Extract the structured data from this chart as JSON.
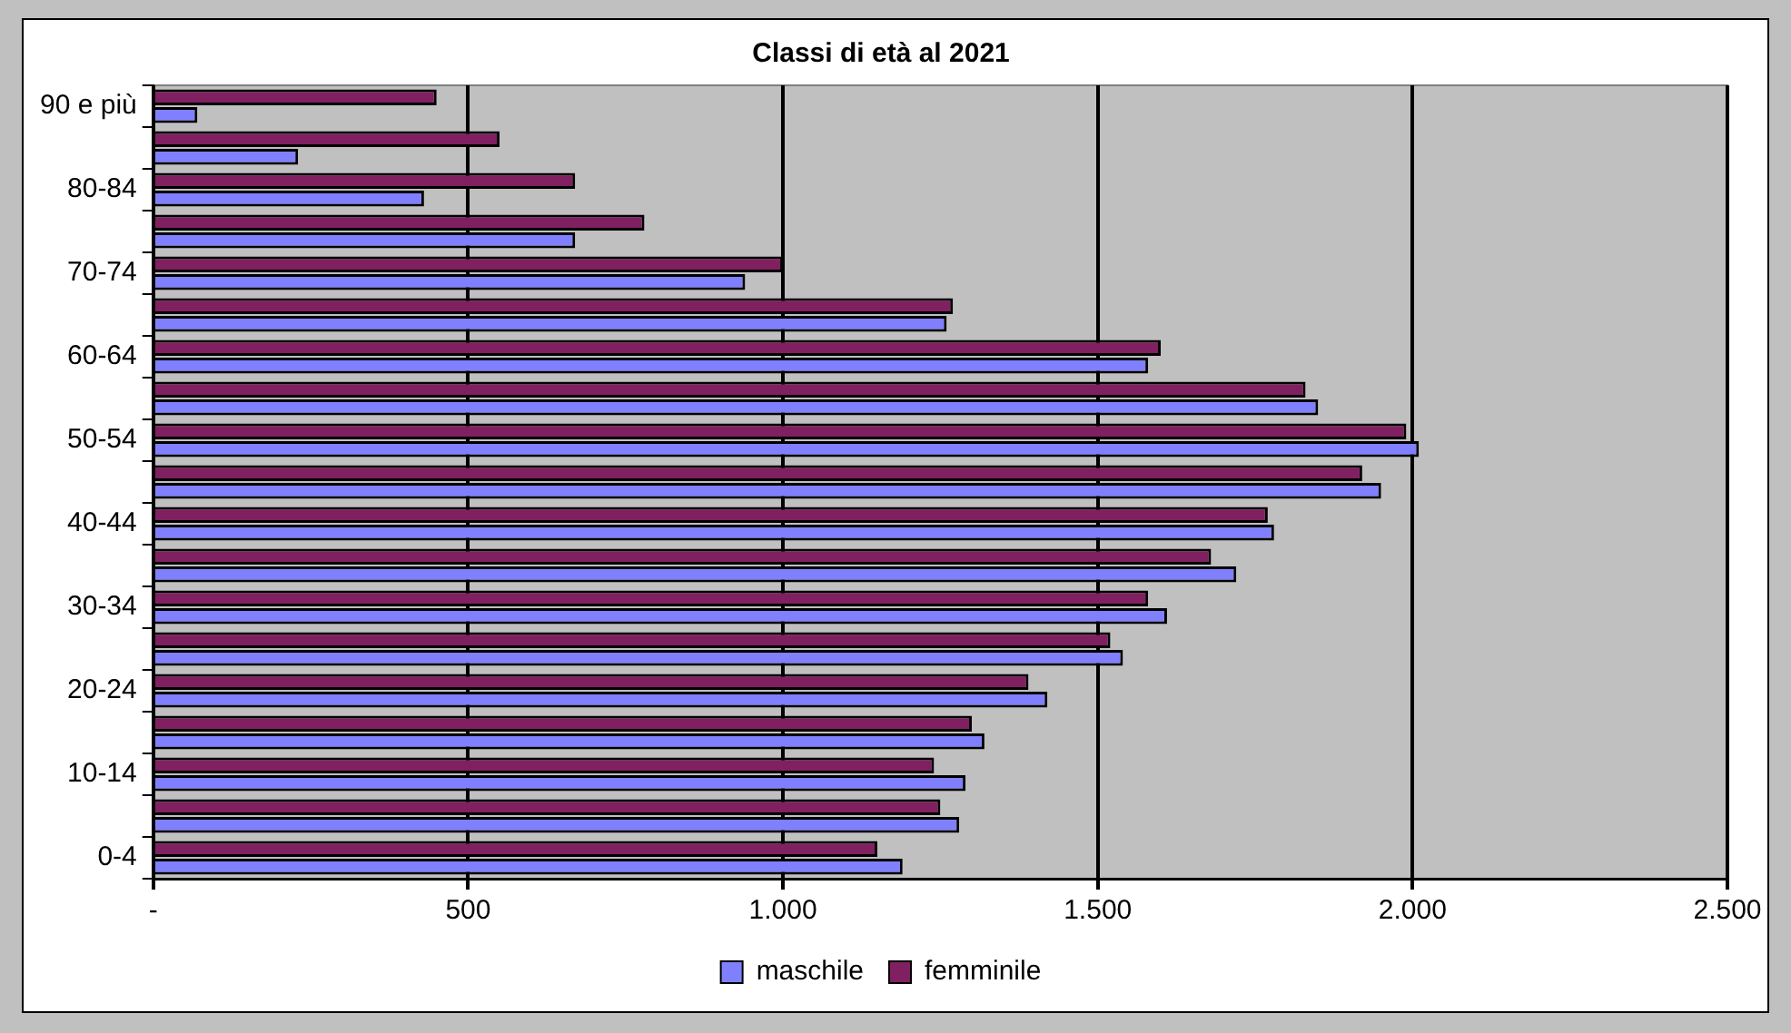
{
  "chart_data": {
    "type": "bar",
    "orientation": "horizontal",
    "title": "Classi di età al 2021",
    "categories": [
      "90 e più",
      null,
      "80-84",
      null,
      "70-74",
      null,
      "60-64",
      null,
      "50-54",
      null,
      "40-44",
      null,
      "30-34",
      null,
      "20-24",
      null,
      "10-14",
      null,
      "0-4"
    ],
    "series": [
      {
        "name": "maschile",
        "color": "#8080ff",
        "values": [
          70,
          230,
          430,
          670,
          940,
          1260,
          1580,
          1850,
          2010,
          1950,
          1780,
          1720,
          1610,
          1540,
          1420,
          1320,
          1290,
          1280,
          1190
        ]
      },
      {
        "name": "femminile",
        "color": "#802060",
        "values": [
          450,
          550,
          670,
          780,
          1000,
          1270,
          1600,
          1830,
          1990,
          1920,
          1770,
          1680,
          1580,
          1520,
          1390,
          1300,
          1240,
          1250,
          1150
        ]
      }
    ],
    "xlim": [
      0,
      2500
    ],
    "xticks": [
      {
        "value": 0,
        "label": "-"
      },
      {
        "value": 500,
        "label": "500"
      },
      {
        "value": 1000,
        "label": "1.000"
      },
      {
        "value": 1500,
        "label": "1.500"
      },
      {
        "value": 2000,
        "label": "2.000"
      },
      {
        "value": 2500,
        "label": "2.500"
      }
    ],
    "grid": "x",
    "legend": "bottom"
  }
}
